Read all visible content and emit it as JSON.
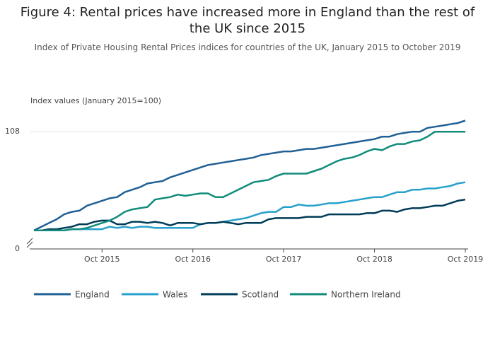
{
  "chart_data": {
    "type": "line",
    "title": "Figure 4: Rental prices have increased more in England than the rest of the UK since 2015",
    "subtitle": "Index of Private Housing Rental Prices indices for countries of the UK, January 2015 to October 2019",
    "y_axis_label": "Index values (January 2015=100)",
    "x": [
      "2015-01",
      "2015-02",
      "2015-03",
      "2015-04",
      "2015-05",
      "2015-06",
      "2015-07",
      "2015-08",
      "2015-09",
      "2015-10",
      "2015-11",
      "2015-12",
      "2016-01",
      "2016-02",
      "2016-03",
      "2016-04",
      "2016-05",
      "2016-06",
      "2016-07",
      "2016-08",
      "2016-09",
      "2016-10",
      "2016-11",
      "2016-12",
      "2017-01",
      "2017-02",
      "2017-03",
      "2017-04",
      "2017-05",
      "2017-06",
      "2017-07",
      "2017-08",
      "2017-09",
      "2017-10",
      "2017-11",
      "2017-12",
      "2018-01",
      "2018-02",
      "2018-03",
      "2018-04",
      "2018-05",
      "2018-06",
      "2018-07",
      "2018-08",
      "2018-09",
      "2018-10",
      "2018-11",
      "2018-12",
      "2019-01",
      "2019-02",
      "2019-03",
      "2019-04",
      "2019-05",
      "2019-06",
      "2019-07",
      "2019-08",
      "2019-09",
      "2019-10"
    ],
    "xlim": [
      "2015-01",
      "2019-10"
    ],
    "xticks": [
      {
        "value": "2015-10",
        "label": "Oct 2015"
      },
      {
        "value": "2016-10",
        "label": "Oct 2016"
      },
      {
        "value": "2017-10",
        "label": "Oct 2017"
      },
      {
        "value": "2018-10",
        "label": "Oct 2018"
      },
      {
        "value": "2019-10",
        "label": "Oct 2019"
      }
    ],
    "ylim": [
      0,
      109.5
    ],
    "y_break": [
      0,
      98.5
    ],
    "yticks": [
      0,
      108
    ],
    "grid": true,
    "series": [
      {
        "name": "England",
        "color": "#206095",
        "values": [
          100.0,
          100.3,
          100.6,
          100.9,
          101.3,
          101.5,
          101.6,
          102.0,
          102.2,
          102.4,
          102.6,
          102.7,
          103.1,
          103.3,
          103.5,
          103.8,
          103.9,
          104.0,
          104.3,
          104.5,
          104.7,
          104.9,
          105.1,
          105.3,
          105.4,
          105.5,
          105.6,
          105.7,
          105.8,
          105.9,
          106.1,
          106.2,
          106.3,
          106.4,
          106.4,
          106.5,
          106.6,
          106.6,
          106.7,
          106.8,
          106.9,
          107.0,
          107.1,
          107.2,
          107.3,
          107.4,
          107.6,
          107.6,
          107.8,
          107.9,
          108.0,
          108.0,
          108.3,
          108.4,
          108.5,
          108.6,
          108.7,
          108.9
        ]
      },
      {
        "name": "Wales",
        "color": "#27a0cc",
        "values": [
          100.0,
          100.0,
          100.0,
          100.0,
          100.0,
          100.1,
          100.1,
          100.1,
          100.1,
          100.1,
          100.3,
          100.2,
          100.3,
          100.2,
          100.3,
          100.3,
          100.2,
          100.2,
          100.2,
          100.2,
          100.2,
          100.2,
          100.5,
          100.6,
          100.6,
          100.7,
          100.8,
          100.9,
          101.0,
          101.2,
          101.4,
          101.5,
          101.5,
          101.9,
          101.9,
          102.1,
          102.0,
          102.0,
          102.1,
          102.2,
          102.2,
          102.3,
          102.4,
          102.5,
          102.6,
          102.7,
          102.7,
          102.9,
          103.1,
          103.1,
          103.3,
          103.3,
          103.4,
          103.4,
          103.5,
          103.6,
          103.8,
          103.9
        ]
      },
      {
        "name": "Scotland",
        "color": "#003c57",
        "values": [
          100.0,
          100.0,
          100.1,
          100.1,
          100.2,
          100.3,
          100.5,
          100.5,
          100.7,
          100.8,
          100.8,
          100.5,
          100.5,
          100.7,
          100.7,
          100.6,
          100.7,
          100.6,
          100.4,
          100.6,
          100.6,
          100.6,
          100.5,
          100.6,
          100.6,
          100.7,
          100.6,
          100.5,
          100.6,
          100.6,
          100.6,
          100.9,
          101.0,
          101.0,
          101.0,
          101.0,
          101.1,
          101.1,
          101.1,
          101.3,
          101.3,
          101.3,
          101.3,
          101.3,
          101.4,
          101.4,
          101.6,
          101.6,
          101.5,
          101.7,
          101.8,
          101.8,
          101.9,
          102.0,
          102.0,
          102.2,
          102.4,
          102.5
        ]
      },
      {
        "name": "Northern Ireland",
        "color": "#118c7b",
        "values": [
          100.0,
          100.0,
          100.0,
          100.0,
          100.0,
          100.1,
          100.1,
          100.2,
          100.4,
          100.6,
          100.8,
          101.1,
          101.5,
          101.7,
          101.8,
          101.9,
          102.5,
          102.6,
          102.7,
          102.9,
          102.8,
          102.9,
          103.0,
          103.0,
          102.7,
          102.7,
          103.0,
          103.3,
          103.6,
          103.9,
          104.0,
          104.1,
          104.4,
          104.6,
          104.6,
          104.6,
          104.6,
          104.8,
          105.0,
          105.3,
          105.6,
          105.8,
          105.9,
          106.1,
          106.4,
          106.6,
          106.5,
          106.8,
          107.0,
          107.0,
          107.2,
          107.3,
          107.6,
          108.0,
          108.0,
          108.0,
          108.0,
          108.0
        ]
      }
    ]
  }
}
